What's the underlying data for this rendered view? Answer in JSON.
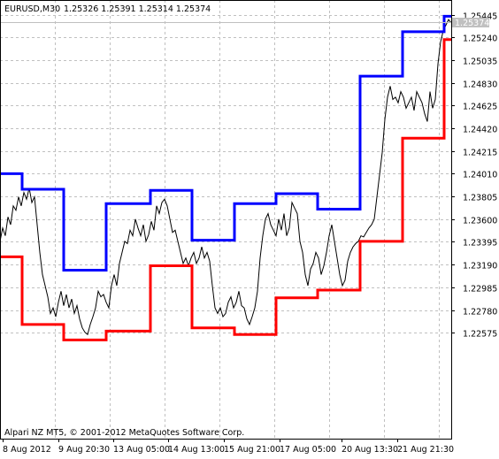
{
  "header": {
    "symbol_timeframe": "EURUSD,M30",
    "ohlc": "1.25326 1.25391 1.25314 1.25374"
  },
  "footer": {
    "copyright": "Alpari NZ MT5, © 2001-2012 MetaQuotes Software Corp."
  },
  "current_price_label": "1.25374",
  "colors": {
    "background": "#ffffff",
    "grid": "#c0c0c0",
    "price_line": "#000000",
    "upper_channel": "#0000ff",
    "lower_channel": "#ff0000",
    "price_tag_bg": "#c0c0c0"
  },
  "chart_data": {
    "type": "line",
    "title": "EURUSD,M30",
    "ylim": [
      1.2248,
      1.2554
    ],
    "grid": true,
    "y_ticks": [
      "1.25445",
      "1.25240",
      "1.25035",
      "1.24830",
      "1.24625",
      "1.24420",
      "1.24215",
      "1.24010",
      "1.23805",
      "1.23600",
      "1.23395",
      "1.23190",
      "1.22985",
      "1.22780",
      "1.22575"
    ],
    "x_ticks": [
      "8 Aug 2012",
      "9 Aug 20:30",
      "13 Aug 05:00",
      "14 Aug 13:00",
      "15 Aug 21:00",
      "17 Aug 05:00",
      "20 Aug 13:30",
      "21 Aug 21:30"
    ],
    "series": [
      {
        "color": "#000000",
        "points": [
          [
            0,
            1.234
          ],
          [
            3,
            1.2352
          ],
          [
            6,
            1.2345
          ],
          [
            9,
            1.2362
          ],
          [
            12,
            1.2355
          ],
          [
            15,
            1.2372
          ],
          [
            18,
            1.2368
          ],
          [
            21,
            1.238
          ],
          [
            24,
            1.2372
          ],
          [
            27,
            1.2384
          ],
          [
            30,
            1.2378
          ],
          [
            33,
            1.2388
          ],
          [
            36,
            1.2375
          ],
          [
            39,
            1.238
          ],
          [
            42,
            1.2355
          ],
          [
            45,
            1.233
          ],
          [
            48,
            1.231
          ],
          [
            51,
            1.23
          ],
          [
            54,
            1.229
          ],
          [
            57,
            1.2275
          ],
          [
            60,
            1.228
          ],
          [
            63,
            1.2272
          ],
          [
            66,
            1.2285
          ],
          [
            69,
            1.2295
          ],
          [
            72,
            1.2282
          ],
          [
            75,
            1.2292
          ],
          [
            78,
            1.228
          ],
          [
            81,
            1.2288
          ],
          [
            84,
            1.2275
          ],
          [
            87,
            1.2282
          ],
          [
            90,
            1.227
          ],
          [
            93,
            1.2262
          ],
          [
            96,
            1.2258
          ],
          [
            99,
            1.2256
          ],
          [
            102,
            1.2265
          ],
          [
            105,
            1.2272
          ],
          [
            108,
            1.228
          ],
          [
            111,
            1.2295
          ],
          [
            114,
            1.229
          ],
          [
            117,
            1.2292
          ],
          [
            120,
            1.2285
          ],
          [
            123,
            1.228
          ],
          [
            126,
            1.23
          ],
          [
            129,
            1.231
          ],
          [
            132,
            1.23
          ],
          [
            135,
            1.232
          ],
          [
            138,
            1.233
          ],
          [
            141,
            1.234
          ],
          [
            144,
            1.2338
          ],
          [
            147,
            1.235
          ],
          [
            150,
            1.2345
          ],
          [
            153,
            1.236
          ],
          [
            156,
            1.2352
          ],
          [
            159,
            1.2345
          ],
          [
            162,
            1.2355
          ],
          [
            165,
            1.234
          ],
          [
            168,
            1.2346
          ],
          [
            171,
            1.2358
          ],
          [
            174,
            1.235
          ],
          [
            177,
            1.2372
          ],
          [
            180,
            1.2365
          ],
          [
            183,
            1.2375
          ],
          [
            186,
            1.2378
          ],
          [
            189,
            1.2372
          ],
          [
            192,
            1.236
          ],
          [
            195,
            1.2348
          ],
          [
            198,
            1.235
          ],
          [
            201,
            1.234
          ],
          [
            204,
            1.233
          ],
          [
            207,
            1.232
          ],
          [
            210,
            1.2325
          ],
          [
            213,
            1.2318
          ],
          [
            216,
            1.2325
          ],
          [
            219,
            1.233
          ],
          [
            222,
            1.232
          ],
          [
            225,
            1.2325
          ],
          [
            228,
            1.2335
          ],
          [
            231,
            1.2325
          ],
          [
            234,
            1.233
          ],
          [
            237,
            1.2322
          ],
          [
            240,
            1.23
          ],
          [
            243,
            1.228
          ],
          [
            246,
            1.2275
          ],
          [
            249,
            1.228
          ],
          [
            252,
            1.2272
          ],
          [
            255,
            1.2275
          ],
          [
            258,
            1.2285
          ],
          [
            261,
            1.229
          ],
          [
            264,
            1.228
          ],
          [
            267,
            1.2285
          ],
          [
            270,
            1.2295
          ],
          [
            273,
            1.2282
          ],
          [
            276,
            1.228
          ],
          [
            279,
            1.227
          ],
          [
            282,
            1.2265
          ],
          [
            285,
            1.2272
          ],
          [
            288,
            1.228
          ],
          [
            291,
            1.2295
          ],
          [
            294,
            1.2325
          ],
          [
            297,
            1.2345
          ],
          [
            300,
            1.236
          ],
          [
            303,
            1.2365
          ],
          [
            306,
            1.2355
          ],
          [
            309,
            1.235
          ],
          [
            312,
            1.2345
          ],
          [
            315,
            1.236
          ],
          [
            318,
            1.235
          ],
          [
            321,
            1.2365
          ],
          [
            324,
            1.2345
          ],
          [
            327,
            1.2352
          ],
          [
            330,
            1.2375
          ],
          [
            333,
            1.237
          ],
          [
            336,
            1.2365
          ],
          [
            339,
            1.234
          ],
          [
            342,
            1.233
          ],
          [
            345,
            1.231
          ],
          [
            348,
            1.23
          ],
          [
            351,
            1.2315
          ],
          [
            354,
            1.232
          ],
          [
            357,
            1.233
          ],
          [
            360,
            1.2325
          ],
          [
            363,
            1.231
          ],
          [
            366,
            1.2318
          ],
          [
            369,
            1.233
          ],
          [
            372,
            1.2345
          ],
          [
            375,
            1.2355
          ],
          [
            378,
            1.234
          ],
          [
            381,
            1.2325
          ],
          [
            384,
            1.231
          ],
          [
            387,
            1.23
          ],
          [
            390,
            1.2305
          ],
          [
            393,
            1.2322
          ],
          [
            396,
            1.233
          ],
          [
            399,
            1.2335
          ],
          [
            402,
            1.2338
          ],
          [
            405,
            1.234
          ],
          [
            408,
            1.2345
          ],
          [
            411,
            1.2344
          ],
          [
            414,
            1.2348
          ],
          [
            417,
            1.2352
          ],
          [
            420,
            1.2355
          ],
          [
            423,
            1.236
          ],
          [
            426,
            1.238
          ],
          [
            429,
            1.24
          ],
          [
            432,
            1.242
          ],
          [
            435,
            1.245
          ],
          [
            438,
            1.247
          ],
          [
            441,
            1.248
          ],
          [
            444,
            1.2468
          ],
          [
            447,
            1.247
          ],
          [
            450,
            1.2465
          ],
          [
            453,
            1.2475
          ],
          [
            456,
            1.247
          ],
          [
            459,
            1.246
          ],
          [
            462,
            1.2465
          ],
          [
            465,
            1.247
          ],
          [
            468,
            1.2458
          ],
          [
            471,
            1.2475
          ],
          [
            474,
            1.247
          ],
          [
            477,
            1.2465
          ],
          [
            480,
            1.2455
          ],
          [
            483,
            1.2448
          ],
          [
            486,
            1.2475
          ],
          [
            489,
            1.246
          ],
          [
            492,
            1.2468
          ],
          [
            495,
            1.25
          ],
          [
            498,
            1.252
          ],
          [
            501,
            1.253
          ],
          [
            504,
            1.2535
          ],
          [
            507,
            1.254
          ],
          [
            510,
            1.2537
          ]
        ]
      },
      {
        "color": "#0000ff",
        "points": [
          [
            0,
            1.2401
          ],
          [
            25,
            1.2401
          ],
          [
            25,
            1.2387
          ],
          [
            72,
            1.2387
          ],
          [
            72,
            1.2314
          ],
          [
            120,
            1.2314
          ],
          [
            120,
            1.2374
          ],
          [
            170,
            1.2374
          ],
          [
            170,
            1.2386
          ],
          [
            217,
            1.2386
          ],
          [
            217,
            1.2341
          ],
          [
            265,
            1.2341
          ],
          [
            265,
            1.2374
          ],
          [
            312,
            1.2374
          ],
          [
            312,
            1.2383
          ],
          [
            359,
            1.2383
          ],
          [
            359,
            1.2369
          ],
          [
            407,
            1.2369
          ],
          [
            407,
            1.2489
          ],
          [
            455,
            1.2489
          ],
          [
            455,
            1.2529
          ],
          [
            502,
            1.2529
          ],
          [
            502,
            1.2543
          ],
          [
            510,
            1.2543
          ]
        ]
      },
      {
        "color": "#ff0000",
        "points": [
          [
            0,
            1.2326
          ],
          [
            25,
            1.2326
          ],
          [
            25,
            1.2265
          ],
          [
            72,
            1.2265
          ],
          [
            72,
            1.2251
          ],
          [
            120,
            1.2251
          ],
          [
            120,
            1.2259
          ],
          [
            170,
            1.2259
          ],
          [
            170,
            1.2318
          ],
          [
            217,
            1.2318
          ],
          [
            217,
            1.2262
          ],
          [
            265,
            1.2262
          ],
          [
            265,
            1.2256
          ],
          [
            312,
            1.2256
          ],
          [
            312,
            1.2289
          ],
          [
            359,
            1.2289
          ],
          [
            359,
            1.2296
          ],
          [
            407,
            1.2296
          ],
          [
            407,
            1.234
          ],
          [
            455,
            1.234
          ],
          [
            455,
            1.2433
          ],
          [
            502,
            1.2433
          ],
          [
            502,
            1.2522
          ],
          [
            510,
            1.2522
          ]
        ]
      }
    ]
  }
}
